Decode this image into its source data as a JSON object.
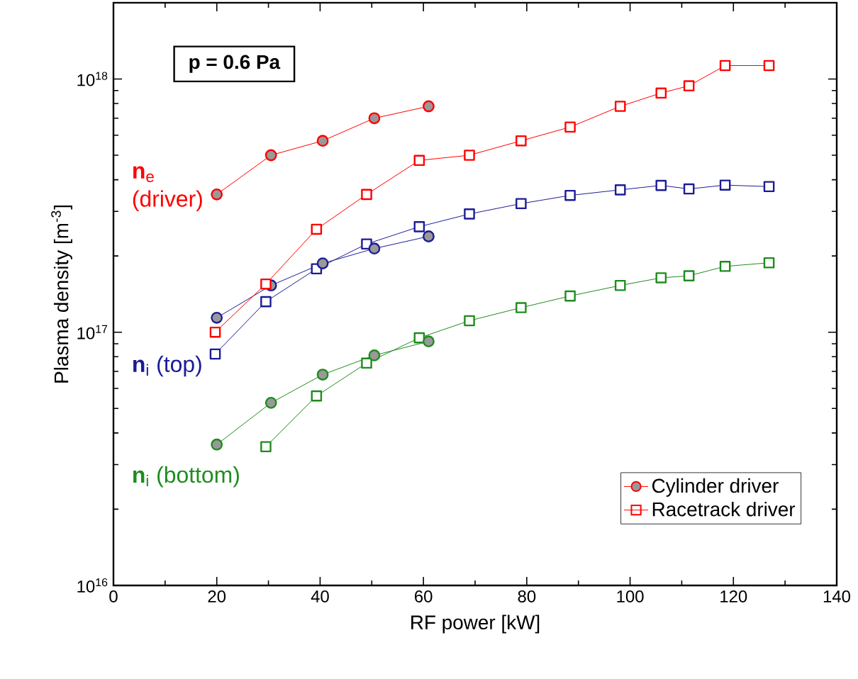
{
  "chart_data": {
    "type": "line",
    "xlabel": "RF power [kW]",
    "ylabel": "Plasma density [m$^{-3}$]",
    "log": "y",
    "xlim": [
      0,
      140
    ],
    "xticks": [
      0,
      20,
      40,
      60,
      80,
      100,
      120,
      140
    ],
    "ylim": [
      1e+16,
      2e+18
    ],
    "yticks": [
      {
        "value": 1e+16,
        "label": "10$^{16}$"
      },
      {
        "value": 1e+17,
        "label": "10$^{17}$"
      },
      {
        "value": 1e+18,
        "label": "10$^{18}$"
      }
    ],
    "legend": "bottom right",
    "annotations": [
      "p = 0.6 Pa",
      "**n**$_{e}$ (driver)",
      "**n**$_{i}$ (top)",
      "**n**$_{i}$ (bottom)"
    ],
    "series": [
      {
        "name": "Cylinder driver",
        "color": "#ff0000",
        "marker": "circle",
        "x": [
          20,
          30.5,
          40.5,
          50.5,
          61
        ],
        "values": [
          3.5e+17,
          5e+17,
          5.7e+17,
          7e+17,
          7.8e+17
        ]
      },
      {
        "name": "Racetrack driver",
        "color": "#ff0000",
        "marker": "square",
        "x": [
          19.7,
          29.5,
          39.3,
          49,
          59.2,
          68.9,
          78.9,
          88.4,
          98.1,
          106,
          111.4,
          118.4,
          126.9
        ],
        "values": [
          1e+17,
          1.55e+17,
          2.55e+17,
          3.5e+17,
          4.77e+17,
          5e+17,
          5.7e+17,
          6.46e+17,
          7.8e+17,
          8.8e+17,
          9.4e+17,
          1.13e+18,
          1.13e+18
        ]
      },
      {
        "color": "#1c1c96",
        "marker": "circle",
        "x": [
          20,
          30.5,
          40.5,
          50.5,
          61
        ],
        "values": [
          1.14e+17,
          1.53e+17,
          1.87e+17,
          2.14e+17,
          2.39e+17
        ]
      },
      {
        "color": "#1c1c96",
        "marker": "square",
        "x": [
          19.7,
          29.5,
          39.3,
          49,
          59.2,
          68.9,
          78.9,
          88.4,
          98.1,
          106,
          111.4,
          118.4,
          126.9
        ],
        "values": [
          8.2e+16,
          1.32e+17,
          1.78e+17,
          2.23e+17,
          2.61e+17,
          2.93e+17,
          3.22e+17,
          3.47e+17,
          3.65e+17,
          3.8e+17,
          3.68e+17,
          3.81e+17,
          3.76e+17
        ]
      },
      {
        "color": "#1e8c1e",
        "marker": "circle",
        "x": [
          20,
          30.5,
          40.5,
          50.5,
          61
        ],
        "values": [
          3.6e+16,
          5.26e+16,
          6.8e+16,
          8.1e+16,
          9.2e+16
        ]
      },
      {
        "color": "#1e8c1e",
        "marker": "square",
        "x": [
          29.5,
          39.3,
          49,
          59.2,
          68.9,
          78.9,
          88.4,
          98.1,
          106,
          111.4,
          118.4,
          126.9
        ],
        "values": [
          3.53e+16,
          5.6e+16,
          7.55e+16,
          9.5e+16,
          1.11e+17,
          1.25e+17,
          1.39e+17,
          1.53e+17,
          1.64e+17,
          1.67e+17,
          1.82e+17,
          1.88e+17
        ]
      }
    ]
  }
}
